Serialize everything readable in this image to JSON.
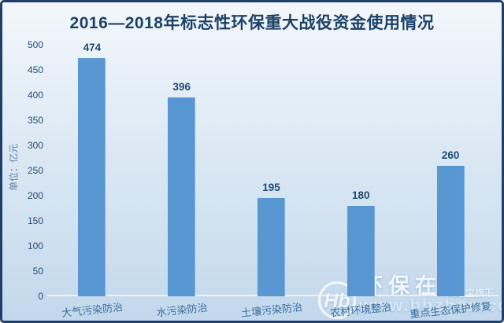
{
  "page": {
    "title": "2016—2018年标志性环保重大战役资金使用情况"
  },
  "chart_data": {
    "type": "bar",
    "title": "2016—2018年标志性环保重大战役资金使用情况",
    "categories": [
      "大气污染防治",
      "水污染防治",
      "土壤污染防治",
      "农村环境整治",
      "重点生态保护修复"
    ],
    "values": [
      474,
      396,
      195,
      180,
      260
    ],
    "xlabel": "",
    "ylabel": "单位：亿元",
    "ylim": [
      0,
      500
    ],
    "ytick_step": 50,
    "grid": false,
    "legend": "none",
    "bar_color": "#5897d1",
    "value_label_color": "#1f4a73",
    "tick_label_color": "#244d77",
    "category_label_color": "#3c6e9f"
  },
  "watermark": {
    "logo_monogram": "Hb",
    "registered_mark": "®",
    "brand": "环保在线",
    "tagline": "兴旺宝旗下",
    "url": "www.hbzhan.com"
  },
  "colors": {
    "frame_border": "#1e3f6a",
    "background_top": "#f3f7fb",
    "background_bottom": "#c3d8ec",
    "title_color": "#1c4268",
    "baseline_color": "#fcf8e4"
  }
}
